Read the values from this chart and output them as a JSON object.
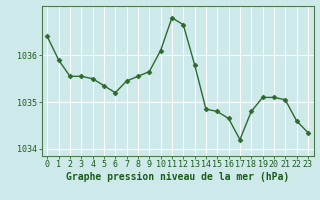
{
  "x": [
    0,
    1,
    2,
    3,
    4,
    5,
    6,
    7,
    8,
    9,
    10,
    11,
    12,
    13,
    14,
    15,
    16,
    17,
    18,
    19,
    20,
    21,
    22,
    23
  ],
  "y": [
    1036.4,
    1035.9,
    1035.55,
    1035.55,
    1035.5,
    1035.35,
    1035.2,
    1035.45,
    1035.55,
    1035.65,
    1036.1,
    1036.8,
    1036.65,
    1035.8,
    1034.85,
    1034.8,
    1034.65,
    1034.2,
    1034.8,
    1035.1,
    1035.1,
    1035.05,
    1034.6,
    1034.35
  ],
  "line_color": "#2d6a2d",
  "marker": "D",
  "marker_size": 2.5,
  "linewidth": 1.0,
  "bg_color": "#cee9ea",
  "grid_color": "#ffffff",
  "xlabel": "Graphe pression niveau de la mer (hPa)",
  "xlabel_fontsize": 7,
  "xlabel_color": "#1a5c1a",
  "tick_color": "#1a5c1a",
  "tick_fontsize": 6,
  "yticks": [
    1034,
    1035,
    1036
  ],
  "ylim": [
    1033.85,
    1037.05
  ],
  "xlim": [
    -0.5,
    23.5
  ],
  "xticks": [
    0,
    1,
    2,
    3,
    4,
    5,
    6,
    7,
    8,
    9,
    10,
    11,
    12,
    13,
    14,
    15,
    16,
    17,
    18,
    19,
    20,
    21,
    22,
    23
  ]
}
